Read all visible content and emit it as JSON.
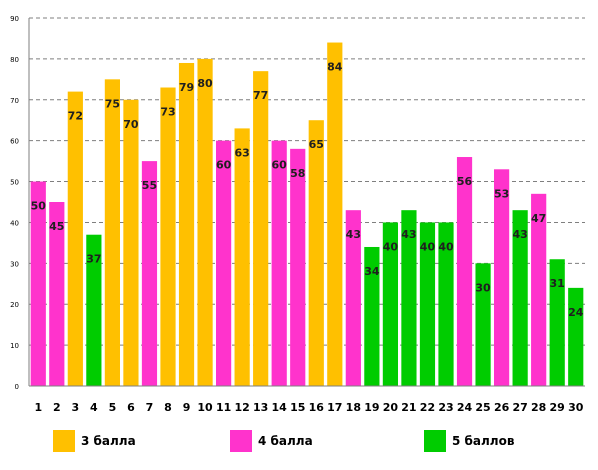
{
  "chart_data": {
    "type": "bar",
    "title": "",
    "xlabel": "",
    "ylabel": "",
    "ylim": [
      0,
      90
    ],
    "y_ticks": [
      0,
      10,
      20,
      30,
      40,
      50,
      60,
      70,
      80,
      90
    ],
    "grid": true,
    "legend_position": "bottom",
    "categories": [
      "1",
      "2",
      "3",
      "4",
      "5",
      "6",
      "7",
      "8",
      "9",
      "10",
      "11",
      "12",
      "13",
      "14",
      "15",
      "16",
      "17",
      "18",
      "19",
      "20",
      "21",
      "22",
      "23",
      "24",
      "25",
      "26",
      "27",
      "28",
      "29",
      "30"
    ],
    "values": [
      50,
      45,
      72,
      37,
      75,
      70,
      55,
      73,
      79,
      80,
      60,
      63,
      77,
      60,
      58,
      65,
      84,
      43,
      34,
      40,
      43,
      40,
      40,
      56,
      30,
      53,
      43,
      47,
      31,
      24
    ],
    "groups": [
      "4 балла",
      "4 балла",
      "3 балла",
      "5 баллов",
      "3 балла",
      "3 балла",
      "4 балла",
      "3 балла",
      "3 балла",
      "3 балла",
      "4 балла",
      "3 балла",
      "3 балла",
      "4 балла",
      "4 балла",
      "3 балла",
      "3 балла",
      "4 балла",
      "5 баллов",
      "5 баллов",
      "5 баллов",
      "5 баллов",
      "5 баллов",
      "4 балла",
      "5 баллов",
      "4 балла",
      "5 баллов",
      "4 балла",
      "5 баллов",
      "5 баллов"
    ],
    "legend": [
      {
        "name": "3 балла",
        "color": "#FFC000"
      },
      {
        "name": "4 балла",
        "color": "#FF33CC"
      },
      {
        "name": "5 баллов",
        "color": "#00CC00"
      }
    ]
  }
}
